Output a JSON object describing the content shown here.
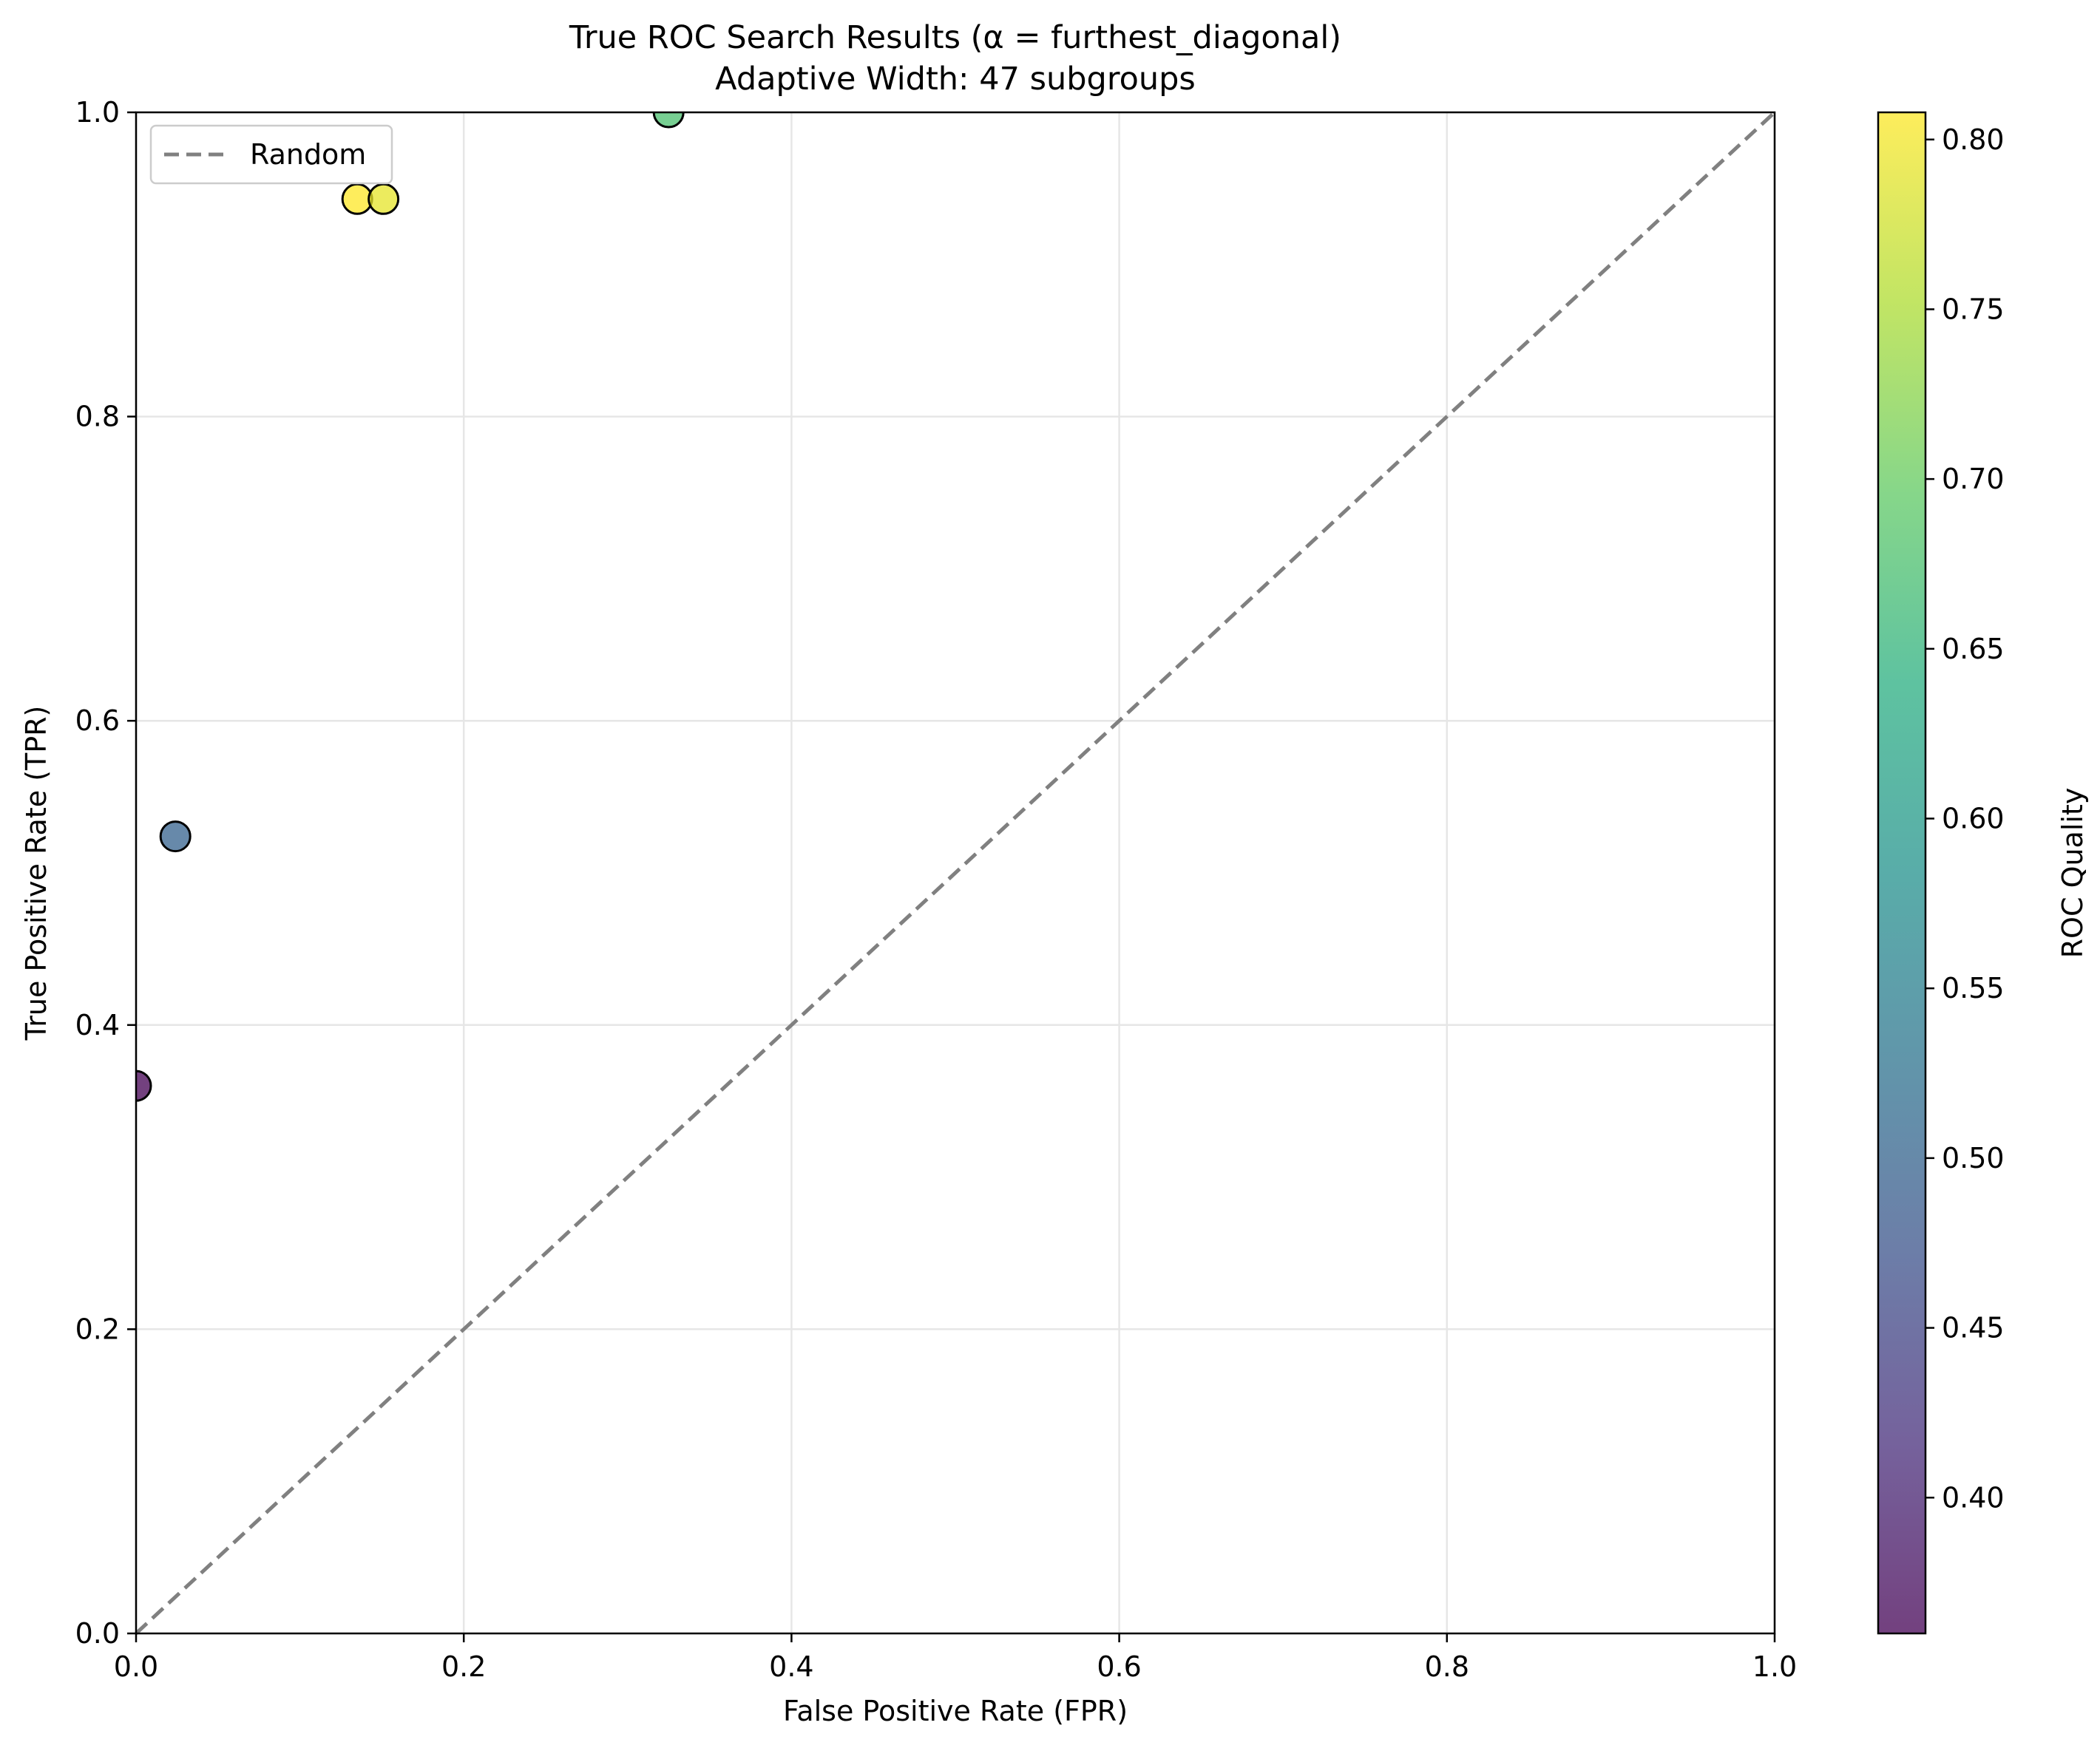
{
  "chart_data": {
    "type": "scatter",
    "title_line1": "True ROC Search Results (α = furthest_diagonal)",
    "title_line2": "Adaptive Width: 47 subgroups",
    "xlabel": "False Positive Rate (FPR)",
    "ylabel": "True Positive Rate (TPR)",
    "xlim": [
      0,
      1
    ],
    "ylim": [
      0,
      1
    ],
    "x_ticks": [
      "0.0",
      "0.2",
      "0.4",
      "0.6",
      "0.8",
      "1.0"
    ],
    "y_ticks": [
      "0.0",
      "0.2",
      "0.4",
      "0.6",
      "0.8",
      "1.0"
    ],
    "grid": true,
    "legend": {
      "placement": "top-left",
      "entries": [
        "Random"
      ]
    },
    "reference_line": {
      "name": "Random",
      "style": "dashed",
      "color": "#808080",
      "from": [
        0,
        0
      ],
      "to": [
        1,
        1
      ]
    },
    "colorbar": {
      "label": "ROC Quality",
      "range": [
        0.36,
        0.808
      ],
      "ticks": [
        "0.40",
        "0.45",
        "0.50",
        "0.55",
        "0.60",
        "0.65",
        "0.70",
        "0.75",
        "0.80"
      ],
      "colormap": "viridis"
    },
    "points": [
      {
        "fpr": 0.0,
        "tpr": 0.36,
        "quality": 0.36
      },
      {
        "fpr": 0.024,
        "tpr": 0.524,
        "quality": 0.5
      },
      {
        "fpr": 0.135,
        "tpr": 0.943,
        "quality": 0.808
      },
      {
        "fpr": 0.151,
        "tpr": 0.943,
        "quality": 0.792
      },
      {
        "fpr": 0.325,
        "tpr": 1.0,
        "quality": 0.675
      }
    ]
  }
}
